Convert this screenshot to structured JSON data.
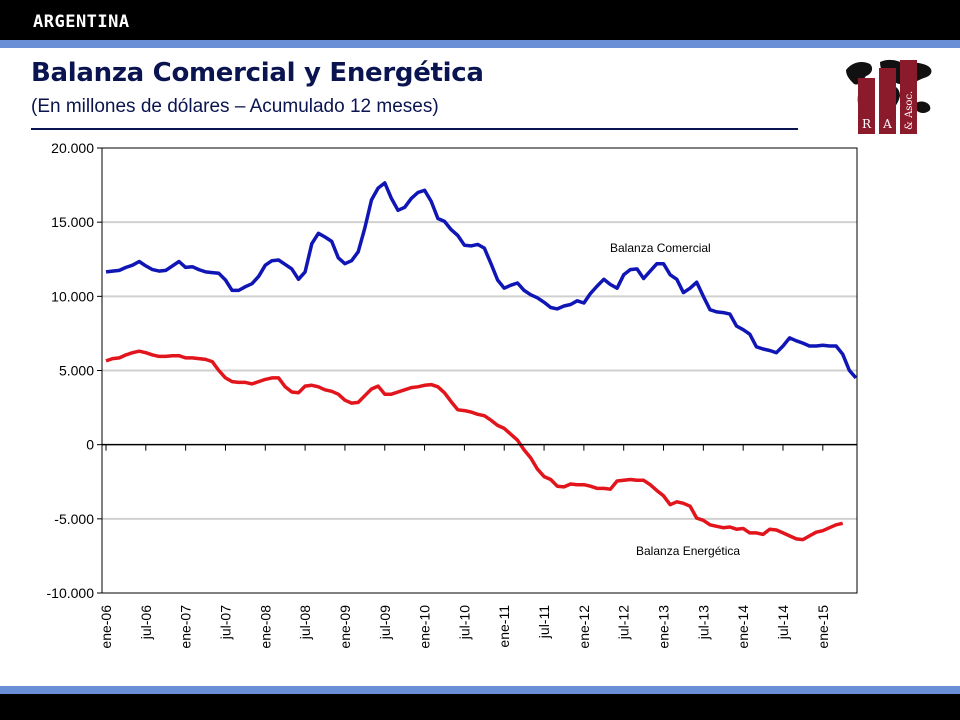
{
  "header": {
    "country": "ARGENTINA",
    "title": "Balanza Comercial y Energética",
    "subtitle": "(En millones de dólares – Acumulado 12 meses)"
  },
  "logo": {
    "letters": [
      "R",
      "A",
      "& Asoc."
    ],
    "color": "#8b1a2b"
  },
  "colors": {
    "bar": "#000000",
    "stripe": "#6a8fd6",
    "title": "#0a1450",
    "comercial": "#1016b5",
    "energetica": "#e2141c",
    "grid": "#d0d0d0"
  },
  "chart_data": {
    "type": "line",
    "title": "Balanza Comercial y Energética",
    "ylim": [
      -10000,
      20000
    ],
    "yticks": [
      20000,
      15000,
      10000,
      5000,
      0,
      -5000,
      -10000
    ],
    "ytick_labels": [
      "20.000",
      "15.000",
      "10.000",
      "5.000",
      "0",
      "-5.000",
      "-10.000"
    ],
    "xtick_labels": [
      "ene-06",
      "jul-06",
      "ene-07",
      "jul-07",
      "ene-08",
      "jul-08",
      "ene-09",
      "jul-09",
      "ene-10",
      "jul-10",
      "ene-11",
      "jul-11",
      "ene-12",
      "jul-12",
      "ene-13",
      "jul-13",
      "ene-14",
      "jul-14",
      "ene-15"
    ],
    "x_start": "ene-06",
    "grid": true,
    "series": [
      {
        "name": "Balanza Comercial",
        "color": "#1016b5",
        "values": [
          11650,
          11700,
          11750,
          11950,
          12100,
          12350,
          12050,
          11800,
          11700,
          11750,
          12050,
          12350,
          11950,
          12000,
          11800,
          11650,
          11600,
          11550,
          11100,
          10400,
          10400,
          10650,
          10850,
          11350,
          12100,
          12400,
          12450,
          12150,
          11850,
          11150,
          11650,
          13550,
          14250,
          14000,
          13700,
          12600,
          12200,
          12400,
          13000,
          14600,
          16500,
          17300,
          17650,
          16600,
          15800,
          16000,
          16600,
          17000,
          17150,
          16400,
          15250,
          15050,
          14500,
          14100,
          13450,
          13400,
          13500,
          13250,
          12200,
          11100,
          10550,
          10750,
          10900,
          10400,
          10100,
          9900,
          9600,
          9250,
          9150,
          9350,
          9450,
          9700,
          9550,
          10200,
          10700,
          11150,
          10800,
          10550,
          11450,
          11800,
          11850,
          11200,
          11700,
          12200,
          12200,
          11450,
          11150,
          10250,
          10550,
          10950,
          10000,
          9100,
          8950,
          8900,
          8800,
          8000,
          7750,
          7450,
          6600,
          6450,
          6350,
          6200,
          6650,
          7200,
          7000,
          6850,
          6650,
          6650,
          6700,
          6650,
          6650,
          6100,
          5000,
          4500
        ]
      },
      {
        "name": "Balanza Energética",
        "color": "#e2141c",
        "values": [
          5650,
          5800,
          5850,
          6050,
          6200,
          6300,
          6200,
          6050,
          5950,
          5950,
          6000,
          6000,
          5850,
          5850,
          5800,
          5750,
          5600,
          5000,
          4500,
          4250,
          4200,
          4200,
          4100,
          4250,
          4400,
          4500,
          4500,
          3900,
          3550,
          3500,
          3950,
          4000,
          3900,
          3700,
          3600,
          3400,
          3000,
          2800,
          2850,
          3300,
          3750,
          3950,
          3400,
          3400,
          3550,
          3700,
          3850,
          3900,
          4000,
          4050,
          3900,
          3500,
          2900,
          2350,
          2300,
          2200,
          2050,
          1950,
          1650,
          1300,
          1100,
          700,
          300,
          -350,
          -900,
          -1650,
          -2150,
          -2350,
          -2800,
          -2850,
          -2650,
          -2700,
          -2700,
          -2800,
          -2950,
          -2950,
          -3000,
          -2450,
          -2400,
          -2350,
          -2400,
          -2400,
          -2700,
          -3100,
          -3450,
          -4050,
          -3850,
          -3950,
          -4150,
          -4950,
          -5100,
          -5400,
          -5500,
          -5600,
          -5550,
          -5700,
          -5650,
          -5950,
          -5950,
          -6050,
          -5700,
          -5750,
          -5950,
          -6150,
          -6350,
          -6400,
          -6150,
          -5900,
          -5800,
          -5600,
          -5400,
          -5300
        ]
      }
    ],
    "annotations": [
      {
        "text": "Balanza  Comercial",
        "series": "Balanza Comercial"
      },
      {
        "text": "Balanza  Energética",
        "series": "Balanza Energética"
      }
    ]
  }
}
